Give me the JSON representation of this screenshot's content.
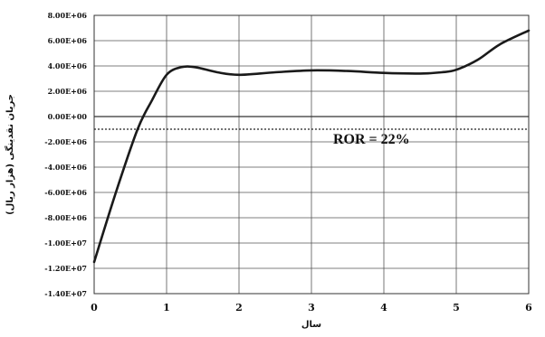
{
  "chart_data": {
    "type": "line",
    "xlabel": "سال",
    "ylabel": "جریان نقدینگی (هزار ریال)",
    "xlim": [
      0,
      6
    ],
    "ylim": [
      -14000000,
      8000000
    ],
    "grid": true,
    "x_ticks": [
      "0",
      "1",
      "2",
      "3",
      "4",
      "5",
      "6"
    ],
    "y_ticks": [
      {
        "value": 8000000,
        "label": "8.00E+06"
      },
      {
        "value": 6000000,
        "label": "6.00E+06"
      },
      {
        "value": 4000000,
        "label": "4.00E+06"
      },
      {
        "value": 2000000,
        "label": "2.00E+06"
      },
      {
        "value": 0,
        "label": "0.00E+00"
      },
      {
        "value": -2000000,
        "label": "-2.00E+06"
      },
      {
        "value": -4000000,
        "label": "-4.00E+06"
      },
      {
        "value": -6000000,
        "label": "-6.00E+06"
      },
      {
        "value": -8000000,
        "label": "-8.00E+06"
      },
      {
        "value": -10000000,
        "label": "-1.00E+07"
      },
      {
        "value": -12000000,
        "label": "-1.20E+07"
      },
      {
        "value": -14000000,
        "label": "-1.40E+07"
      }
    ],
    "series": [
      {
        "x": [
          0,
          0.3,
          0.6,
          0.8,
          1.0,
          1.2,
          1.4,
          1.7,
          2.0,
          2.5,
          3.0,
          3.5,
          4.0,
          4.5,
          4.8,
          5.0,
          5.3,
          5.6,
          6.0
        ],
        "y": [
          -11500000,
          -6000000,
          -1000000,
          1300000,
          3300000,
          3900000,
          3900000,
          3500000,
          3300000,
          3500000,
          3650000,
          3600000,
          3450000,
          3400000,
          3500000,
          3700000,
          4500000,
          5700000,
          6800000
        ]
      }
    ],
    "reference_line": {
      "y": -1000000,
      "style": "dotted"
    },
    "annotation": {
      "text": "ROR = 22%",
      "x": 3.3,
      "y": -1700000
    }
  }
}
